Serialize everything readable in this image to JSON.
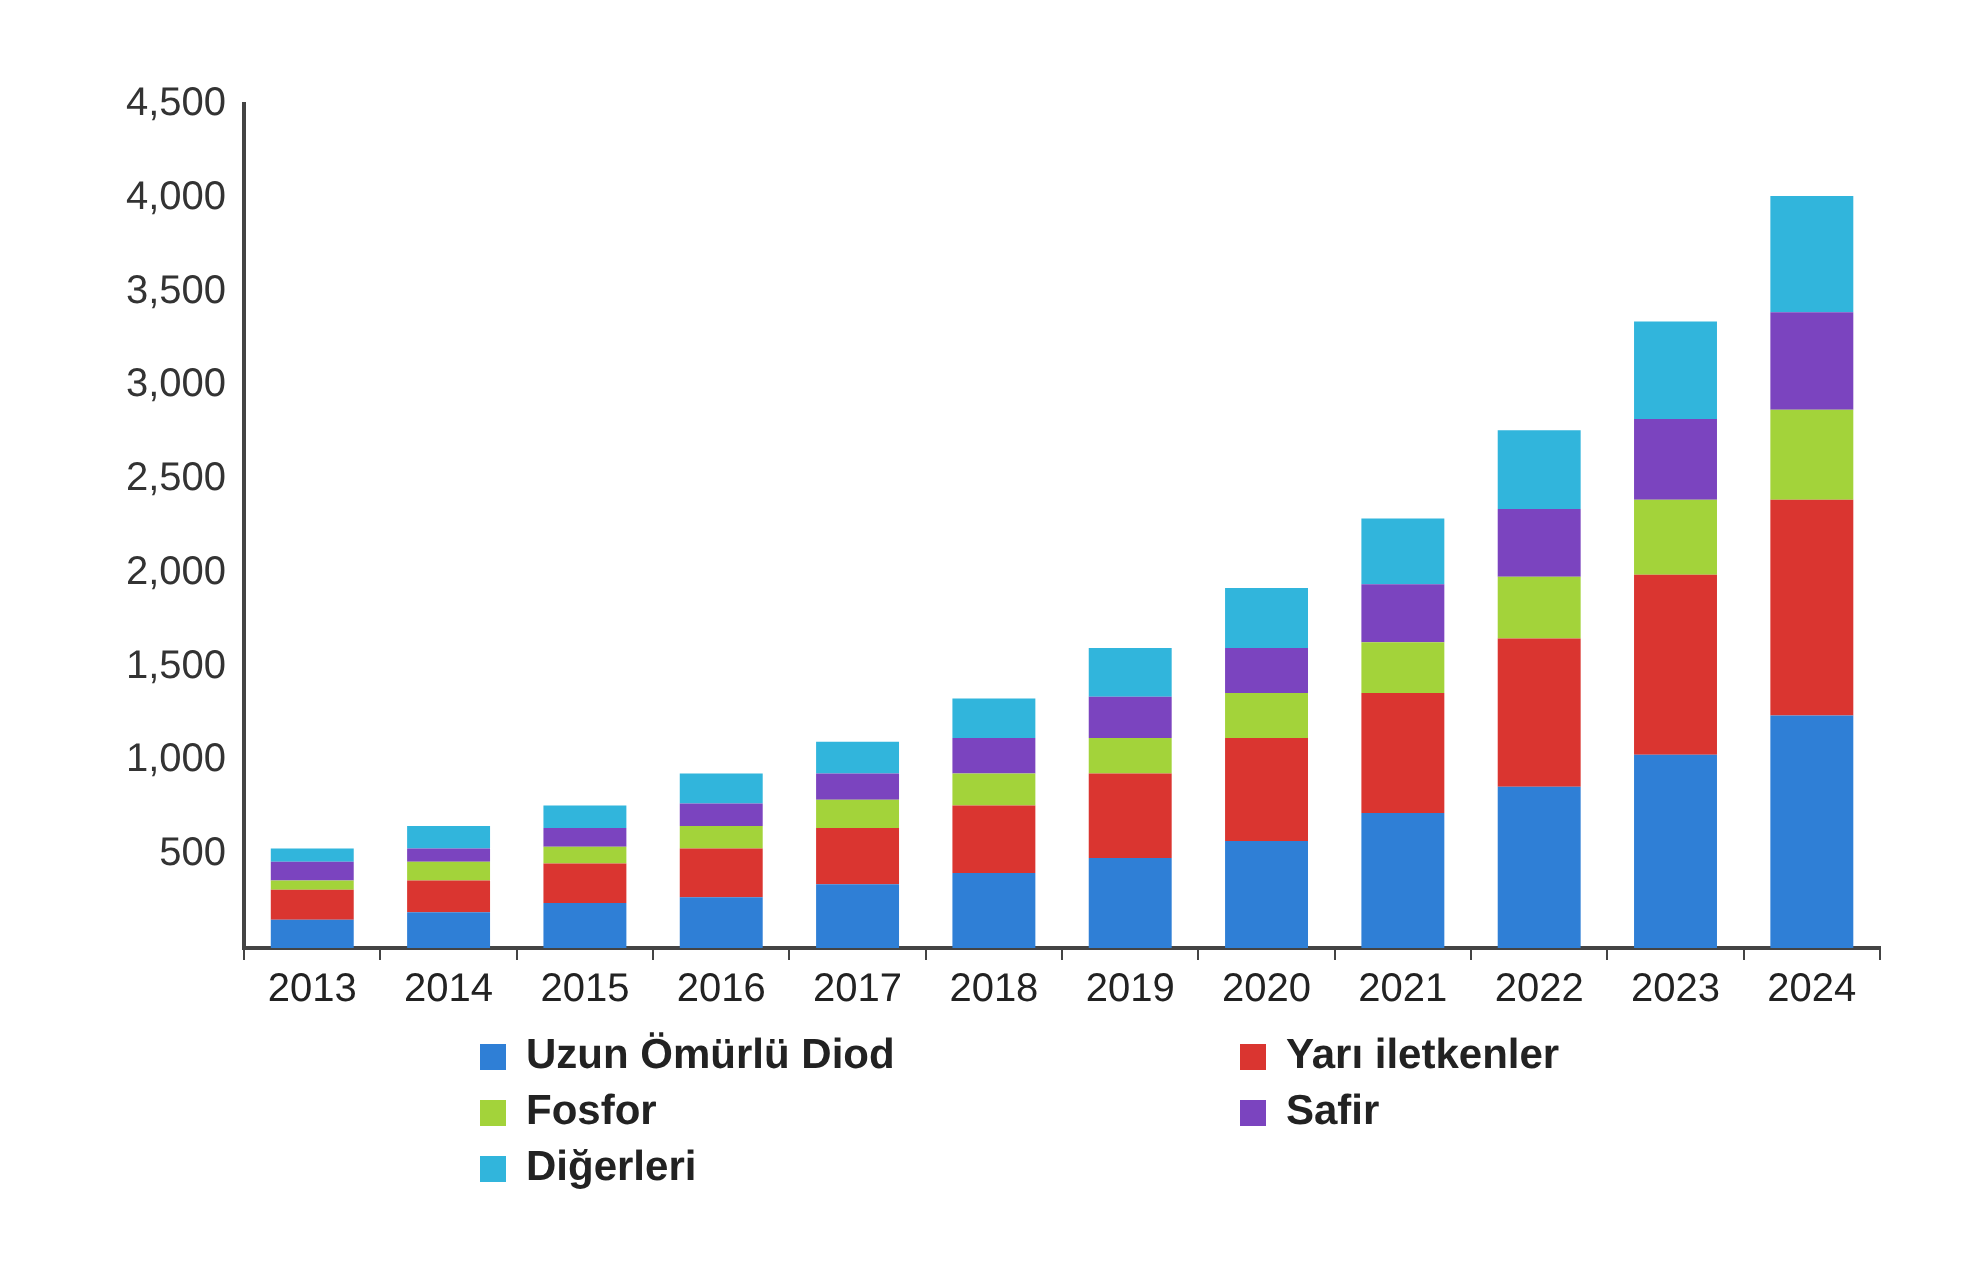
{
  "chart_data": {
    "type": "bar",
    "stacked": true,
    "categories": [
      "2013",
      "2014",
      "2015",
      "2016",
      "2017",
      "2018",
      "2019",
      "2020",
      "2021",
      "2022",
      "2023",
      "2024"
    ],
    "series": [
      {
        "name": "Uzun Ömürlü Diod",
        "color": "#2f7fd6",
        "values": [
          150,
          190,
          240,
          270,
          340,
          400,
          480,
          570,
          720,
          860,
          1030,
          1240
        ]
      },
      {
        "name": "Yarı iletkenler",
        "color": "#da3530",
        "values": [
          160,
          170,
          210,
          260,
          300,
          360,
          450,
          550,
          640,
          790,
          960,
          1150
        ]
      },
      {
        "name": "Fosfor",
        "color": "#a3d33a",
        "values": [
          50,
          100,
          90,
          120,
          150,
          170,
          190,
          240,
          270,
          330,
          400,
          480
        ]
      },
      {
        "name": "Safir",
        "color": "#7b44bf",
        "values": [
          100,
          70,
          100,
          120,
          140,
          190,
          220,
          240,
          310,
          360,
          430,
          520
        ]
      },
      {
        "name": "Diğerleri",
        "color": "#31b5dc",
        "values": [
          70,
          120,
          120,
          160,
          170,
          210,
          260,
          320,
          350,
          420,
          520,
          620
        ]
      }
    ],
    "ylim": [
      0,
      4500
    ],
    "yticks": [
      500,
      {
        "value": 1000,
        "label": "1,000"
      },
      {
        "value": 1500,
        "label": "1,500"
      },
      {
        "value": 2000,
        "label": "2,000"
      },
      {
        "value": 2500,
        "label": "2,500"
      },
      {
        "value": 3000,
        "label": "3,000"
      },
      {
        "value": 3500,
        "label": "3,500"
      },
      {
        "value": 4000,
        "label": "4,000"
      },
      {
        "value": 4500,
        "label": "4,500"
      }
    ],
    "grid": false,
    "legend": "bottom"
  }
}
